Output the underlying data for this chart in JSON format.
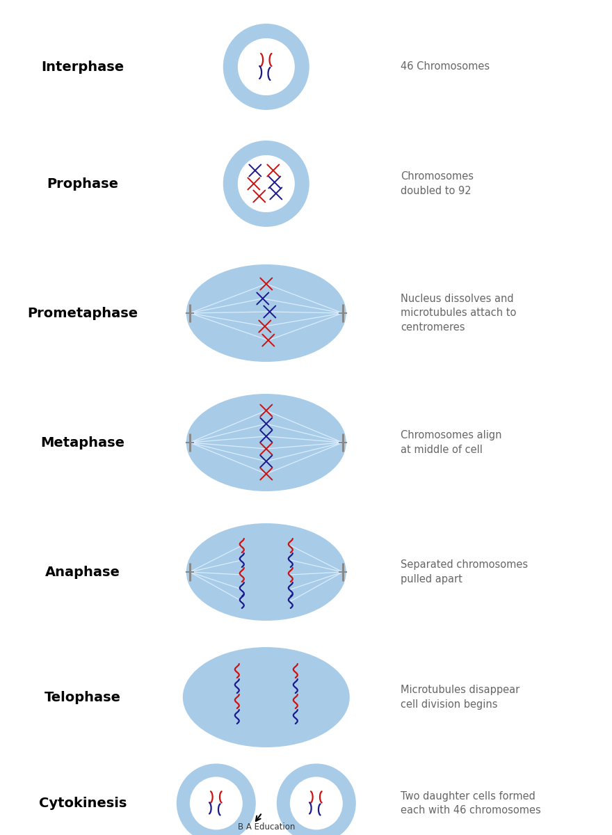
{
  "bg_color": "#ffffff",
  "cell_outer_color": "#a8cce8",
  "cell_inner_color": "#ffffff",
  "dark_blue": "#1a1a8c",
  "red": "#cc1111",
  "gray_text": "#666666",
  "spindle_color": "#ddeeff",
  "pole_color": "#888888",
  "phases": [
    {
      "name": "Interphase",
      "yf": 0.92,
      "desc": "46 Chromosomes"
    },
    {
      "name": "Prophase",
      "yf": 0.78,
      "desc": "Chromosomes\ndoubled to 92"
    },
    {
      "name": "Prometaphase",
      "yf": 0.625,
      "desc": "Nucleus dissolves and\nmicrotubules attach to\ncentromeres"
    },
    {
      "name": "Metaphase",
      "yf": 0.47,
      "desc": "Chromosomes align\nat middle of cell"
    },
    {
      "name": "Anaphase",
      "yf": 0.315,
      "desc": "Separated chromosomes\npulled apart"
    },
    {
      "name": "Telophase",
      "yf": 0.165,
      "desc": "Microtubules disappear\ncell division begins"
    },
    {
      "name": "Cytokinesis",
      "yf": 0.038,
      "desc": "Two daughter cells formed\neach with 46 chromosomes"
    }
  ],
  "label_xf": 0.135,
  "cell_xf": 0.435,
  "desc_xf": 0.655,
  "FW": 8.8,
  "FH": 12.0
}
